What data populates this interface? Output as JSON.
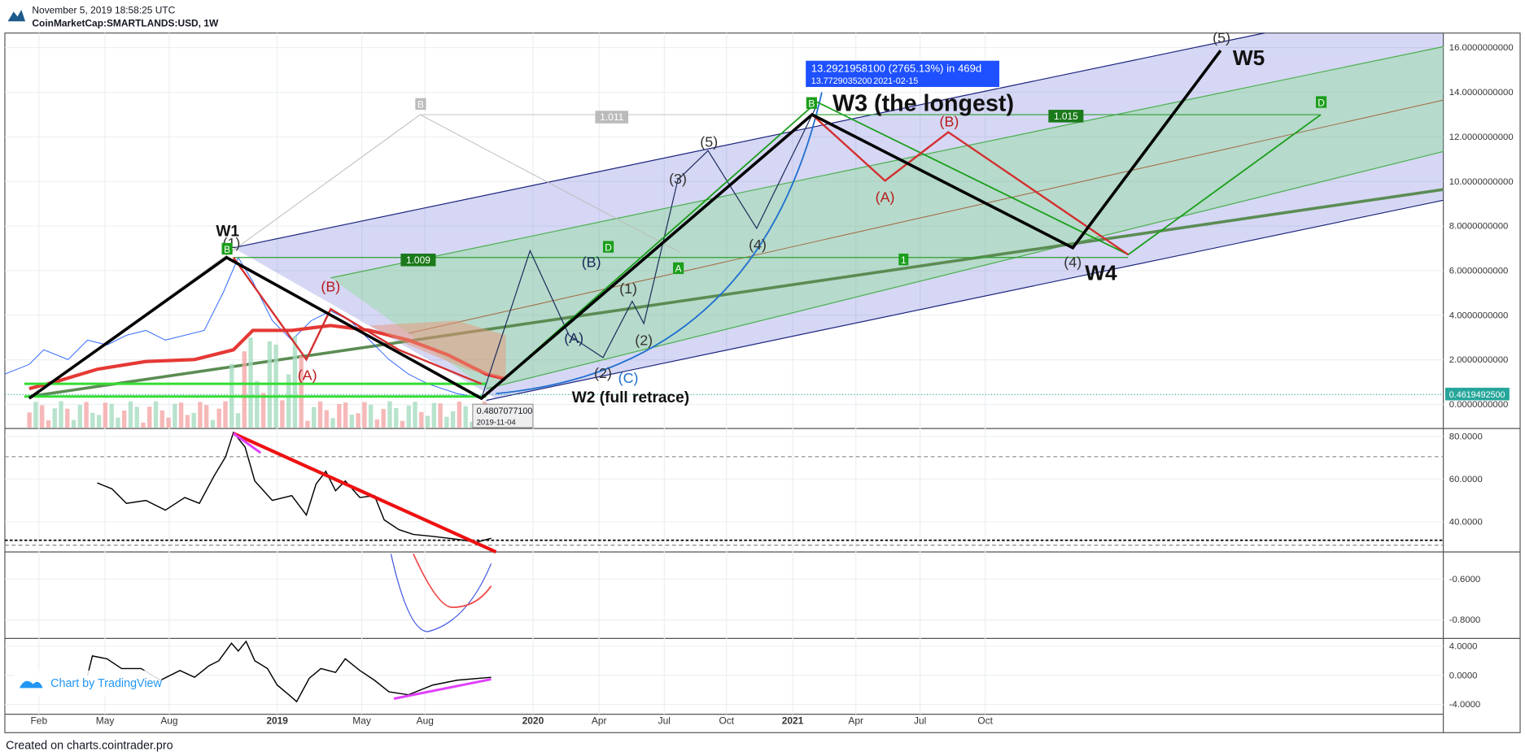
{
  "header": {
    "date": "November 5, 2019 18:58:25 UTC",
    "symbol": "CoinMarketCap:SMARTLANDS:USD, 1W"
  },
  "price_axis": [
    "16.0000000000",
    "14.0000000000",
    "12.0000000000",
    "10.0000000000",
    "8.0000000000",
    "6.0000000000",
    "4.0000000000",
    "2.0000000000",
    "0.0000000000"
  ],
  "last_price": "0.4619492500",
  "rsi_axis": [
    "80.0000",
    "60.0000",
    "40.0000"
  ],
  "osc_axis": [
    "-0.6000",
    "-0.8000"
  ],
  "momentum_axis": [
    "4.0000",
    "0.0000",
    "-4.0000"
  ],
  "time_axis": [
    "Feb",
    "May",
    "Aug",
    "2019",
    "May",
    "Aug",
    "2020",
    "Apr",
    "Jul",
    "Oct",
    "2021",
    "Apr",
    "Jul",
    "Oct"
  ],
  "callout": [
    "13.2921958100 (2765.13%) in 469d",
    "13.7729035200",
    "2021-02-15"
  ],
  "low": [
    "0.4807077100",
    "2019-11-04"
  ],
  "waves": [
    "W1",
    "W2 (full retrace)",
    "W3 (the longest)",
    "W4",
    "W5",
    "(5)",
    "(3)",
    "(4)",
    "(1)",
    "(2)",
    "(2)",
    "(4)",
    "(5)",
    "(A)",
    "(B)",
    "(A)",
    "(B)",
    "(A)",
    "(B)",
    "(C)",
    "(1)"
  ],
  "levels": [
    "1.009",
    "1.011",
    "1.015"
  ],
  "points": [
    "1",
    "B",
    "D",
    "A"
  ],
  "watermark": "Chart by TradingView",
  "footer": "Created on charts.cointrader.pro"
}
